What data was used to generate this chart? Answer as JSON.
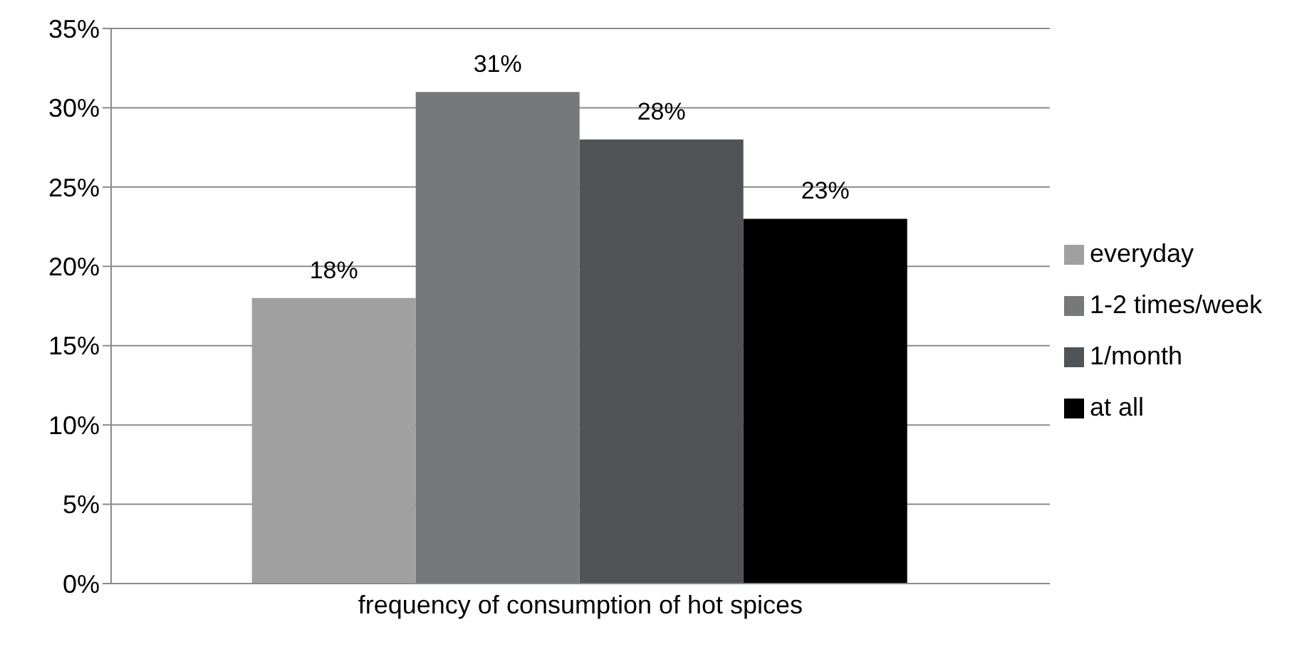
{
  "chart_data": {
    "type": "bar",
    "categories": [
      "frequency of consumption of hot spices"
    ],
    "series": [
      {
        "name": "everyday",
        "color": "#a0a0a0",
        "values": [
          18
        ],
        "value_labels": [
          "18%"
        ]
      },
      {
        "name": "1-2 times/week",
        "color": "#767879",
        "values": [
          31
        ],
        "value_labels": [
          "31%"
        ]
      },
      {
        "name": "1/month",
        "color": "#505457",
        "values": [
          28
        ],
        "value_labels": [
          "28%"
        ]
      },
      {
        "name": "at all",
        "color": "#000000",
        "values": [
          23
        ],
        "value_labels": [
          "23%"
        ]
      }
    ],
    "ylim": [
      0,
      35
    ],
    "yticks": [
      {
        "value": 0,
        "label": "0%"
      },
      {
        "value": 5,
        "label": "5%"
      },
      {
        "value": 10,
        "label": "10%"
      },
      {
        "value": 15,
        "label": "15%"
      },
      {
        "value": 20,
        "label": "20%"
      },
      {
        "value": 25,
        "label": "25%"
      },
      {
        "value": 30,
        "label": "30%"
      },
      {
        "value": 35,
        "label": "35%"
      }
    ],
    "grid": "y",
    "legend": "right"
  }
}
